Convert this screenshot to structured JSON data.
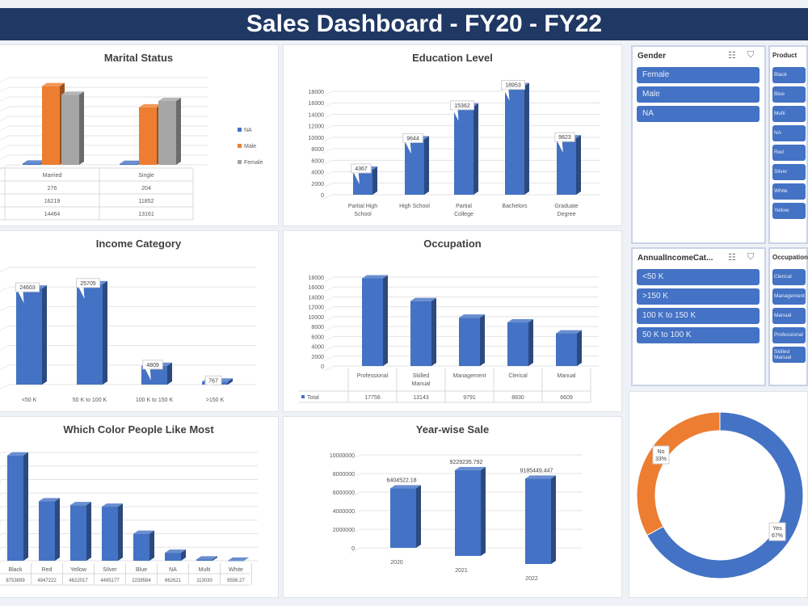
{
  "header": {
    "title": "Sales Dashboard - FY20 - FY22"
  },
  "colors": {
    "header": "#1f3864",
    "blue": "#4472c4",
    "orange": "#ed7d31",
    "gray": "#a5a5a5"
  },
  "chart_data": [
    {
      "id": "marital",
      "type": "bar",
      "title": "Marital Status",
      "categories": [
        "Married",
        "Single"
      ],
      "series": [
        {
          "name": "NA",
          "values": [
            276,
            204
          ]
        },
        {
          "name": "Male",
          "values": [
            16219,
            11852
          ]
        },
        {
          "name": "Female",
          "values": [
            14464,
            13161
          ]
        }
      ],
      "ylim": [
        0,
        18000
      ],
      "legend": "right",
      "data_table": true,
      "grid": true
    },
    {
      "id": "education",
      "type": "bar",
      "title": "Education Level",
      "categories": [
        "Partial High School",
        "High School",
        "Partial College",
        "Bachelors",
        "Graduate Degree"
      ],
      "values": [
        4367,
        9644,
        15362,
        18953,
        9823
      ],
      "ylim": [
        0,
        18000
      ],
      "yticks": [
        0,
        2000,
        4000,
        6000,
        8000,
        10000,
        12000,
        14000,
        16000,
        18000
      ],
      "data_labels": true,
      "grid": true
    },
    {
      "id": "income",
      "type": "bar",
      "title": "Income Category",
      "categories": [
        "<50 K",
        "50 K to 100 K",
        "100 K to 150 K",
        ">150 K"
      ],
      "values": [
        24603,
        25705,
        4809,
        767
      ],
      "ylim": [
        0,
        30000
      ],
      "data_labels": true,
      "grid": true
    },
    {
      "id": "occupation",
      "type": "bar",
      "title": "Occupation",
      "categories": [
        "Professional",
        "Skilled Manual",
        "Management",
        "Clerical",
        "Manual"
      ],
      "series": [
        {
          "name": "Total",
          "values": [
            17756,
            13143,
            9791,
            8830,
            6609
          ]
        }
      ],
      "ylim": [
        0,
        18000
      ],
      "yticks": [
        0,
        2000,
        4000,
        6000,
        8000,
        10000,
        12000,
        14000,
        16000,
        18000
      ],
      "data_table": true,
      "grid": true
    },
    {
      "id": "color",
      "type": "bar",
      "title": "Which Color People Like Most",
      "categories": [
        "Black",
        "Red",
        "Yellow",
        "Silver",
        "Blue",
        "NA",
        "Multi",
        "White"
      ],
      "values": [
        8753899,
        4947222,
        4622017,
        4495177,
        2239584,
        662621,
        113030,
        9556.27
      ],
      "value_labels": [
        "8753899",
        "4947222",
        "4622017",
        "4495177",
        "2239584",
        "662621",
        "113030",
        "9556.27"
      ],
      "ylim": [
        0,
        9000000
      ],
      "data_table": true,
      "grid": true
    },
    {
      "id": "year",
      "type": "bar",
      "title": "Year-wise Sale",
      "categories": [
        "2020",
        "2021",
        "2022"
      ],
      "values": [
        6404522.18,
        9229235.792,
        9185449.447
      ],
      "value_labels": [
        "6404522.18",
        "9229235.792",
        "9185449.447"
      ],
      "ylim": [
        0,
        10000000
      ],
      "yticks": [
        0,
        2000000,
        4000000,
        6000000,
        8000000,
        10000000
      ],
      "data_labels": true,
      "grid": true
    },
    {
      "id": "donut",
      "type": "pie",
      "categories": [
        "Yes",
        "No"
      ],
      "values": [
        67,
        33
      ],
      "labels": [
        "Yes\n67%",
        "No\n33%"
      ]
    }
  ],
  "slicers": {
    "gender": {
      "title": "Gender",
      "items": [
        "Female",
        "Male",
        "NA"
      ]
    },
    "product": {
      "title": "Product",
      "items": [
        "Black",
        "Blue",
        "Multi",
        "NA",
        "Red",
        "Silver",
        "White",
        "Yellow"
      ]
    },
    "income": {
      "title": "AnnualIncomeCat...",
      "items": [
        "<50 K",
        ">150 K",
        "100 K to 150 K",
        "50 K to 100 K"
      ]
    },
    "occupation": {
      "title": "Occupation",
      "items": [
        "Clerical",
        "Management",
        "Manual",
        "Professional",
        "Skilled Manual"
      ]
    }
  }
}
